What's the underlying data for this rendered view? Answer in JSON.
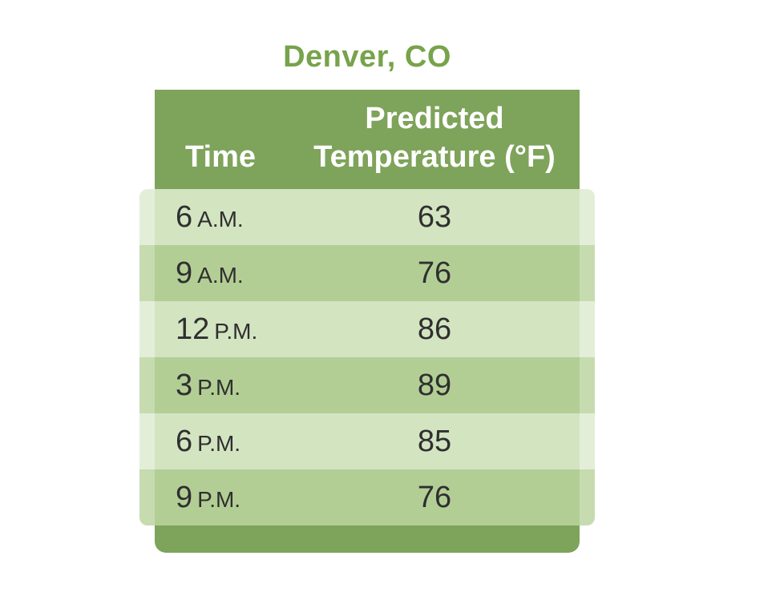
{
  "colors": {
    "title": "#77a34b",
    "header_bg": "#7ea35a",
    "divider": "#7ea35a",
    "row_light": "#d3e4c1",
    "row_dark": "#b2ce95",
    "edge_light": "#e3eed8",
    "edge_dark": "#c6dbb0",
    "footer_bg": "#7ea35a",
    "text": "#2f2f2f"
  },
  "chart_data": {
    "type": "table",
    "title": "Denver, CO",
    "columns": [
      "Time",
      "Predicted\nTemperature (°F)"
    ],
    "rows": [
      {
        "time_num": "6",
        "time_suffix": "A.M.",
        "temp": "63"
      },
      {
        "time_num": "9",
        "time_suffix": "A.M.",
        "temp": "76"
      },
      {
        "time_num": "12",
        "time_suffix": "P.M.",
        "temp": "86"
      },
      {
        "time_num": "3",
        "time_suffix": "P.M.",
        "temp": "89"
      },
      {
        "time_num": "6",
        "time_suffix": "P.M.",
        "temp": "85"
      },
      {
        "time_num": "9",
        "time_suffix": "P.M.",
        "temp": "76"
      }
    ]
  }
}
